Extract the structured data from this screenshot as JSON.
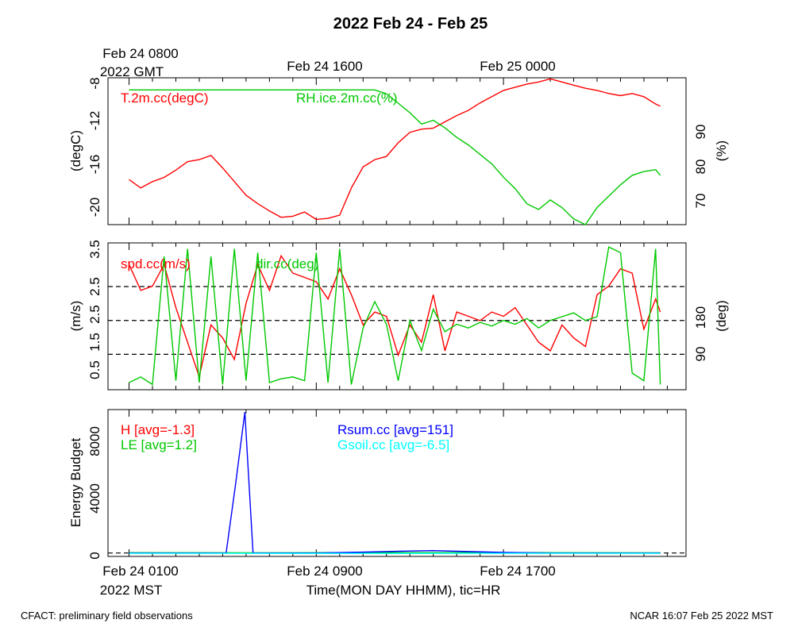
{
  "title": "2022 Feb 24 - Feb 25",
  "top_axis": {
    "ticks": [
      "Feb 24 0800",
      "Feb 24 1600",
      "Feb 25 0000"
    ],
    "zone_label": "2022 GMT"
  },
  "bottom_axis": {
    "ticks": [
      "Feb 24 0100",
      "Feb 24 0900",
      "Feb 24 1700"
    ],
    "zone_label": "2022 MST",
    "xlabel": "Time(MON DAY HHMM), tic=HR"
  },
  "footer": {
    "left": "CFACT: preliminary field observations",
    "right": "NCAR 16:07 Feb 25 2022 MST"
  },
  "colors": {
    "red": "#ff0000",
    "green": "#00c800",
    "blue": "#0000ff",
    "cyan": "#00ffff"
  },
  "chart_data": [
    {
      "type": "line",
      "panel": "temperature-humidity",
      "x_unit": "hours since Feb 24 0100 MST",
      "xlim": [
        -0.9,
        23.8
      ],
      "y_left": {
        "label": "(degC)",
        "ticks": [
          "-8",
          "-12",
          "-16",
          "-20"
        ],
        "ylim": [
          -21.8,
          -7.8
        ]
      },
      "y_right": {
        "label": "(%)",
        "ticks": [
          "70",
          "80",
          "90"
        ],
        "ylim": [
          64.5,
          103.2
        ]
      },
      "series": [
        {
          "name": "T.2m.cc(degC)",
          "color": "#ff0000",
          "axis": "left",
          "x": [
            0,
            0.5,
            1,
            1.5,
            2,
            2.5,
            3,
            3.5,
            4,
            4.5,
            5,
            5.5,
            6,
            6.5,
            7,
            7.5,
            8,
            8.5,
            9,
            9.5,
            10,
            10.5,
            11,
            11.5,
            12,
            12.5,
            13,
            13.5,
            14,
            14.5,
            15,
            15.5,
            16,
            16.5,
            17,
            17.5,
            18,
            18.5,
            19,
            19.5,
            20,
            20.5,
            21,
            21.5,
            22,
            22.5,
            22.7
          ],
          "y": [
            -17.5,
            -18.3,
            -17.7,
            -17.3,
            -16.6,
            -15.8,
            -15.6,
            -15.2,
            -16.4,
            -17.7,
            -19.0,
            -19.8,
            -20.5,
            -21.1,
            -21.0,
            -20.6,
            -21.3,
            -21.2,
            -20.9,
            -18.3,
            -16.3,
            -15.6,
            -15.3,
            -14.0,
            -13.0,
            -12.7,
            -12.6,
            -12.0,
            -11.4,
            -10.9,
            -10.2,
            -9.6,
            -9.0,
            -8.7,
            -8.4,
            -8.2,
            -7.9,
            -8.2,
            -8.5,
            -8.8,
            -9.0,
            -9.3,
            -9.5,
            -9.3,
            -9.6,
            -10.3,
            -10.5
          ]
        },
        {
          "name": "RH.ice.2m.cc(%)",
          "color": "#00c800",
          "axis": "right",
          "x": [
            0,
            0.5,
            1,
            1.5,
            2,
            2.5,
            3,
            3.5,
            4,
            4.5,
            5,
            5.5,
            6,
            6.5,
            7,
            7.5,
            8,
            8.5,
            9,
            9.5,
            10,
            10.5,
            11,
            11.5,
            12,
            12.5,
            13,
            13.5,
            14,
            14.5,
            15,
            15.5,
            16,
            16.5,
            17,
            17.5,
            18,
            18.5,
            19,
            19.5,
            20,
            20.5,
            21,
            21.5,
            22,
            22.5,
            22.7
          ],
          "y": [
            100,
            100,
            100,
            100,
            100,
            100,
            100,
            100,
            100,
            100,
            100,
            100,
            100,
            100,
            100,
            100,
            100,
            100,
            100,
            100,
            100,
            100,
            99,
            96.5,
            94,
            91,
            92,
            90,
            87.5,
            85.5,
            83,
            80.5,
            77,
            74,
            70,
            68.5,
            71,
            69,
            66,
            64.5,
            69,
            72,
            75,
            77.5,
            78.5,
            79,
            77.5
          ]
        }
      ]
    },
    {
      "type": "line",
      "panel": "wind",
      "x_unit": "hours since Feb 24 0100 MST",
      "xlim": [
        -0.9,
        23.8
      ],
      "y_left": {
        "label": "(m/s)",
        "ticks": [
          "0.5",
          "1.5",
          "2.5",
          "3.5"
        ],
        "ylim": [
          0.1,
          3.5
        ]
      },
      "y_right": {
        "label": "(deg)",
        "ticks": [
          "90",
          "180"
        ],
        "ylim": [
          -4,
          386
        ]
      },
      "reference_lines_deg": [
        90,
        180,
        270
      ],
      "series": [
        {
          "name": "spd.cc(m/s)",
          "color": "#ff0000",
          "axis": "left",
          "x": [
            0,
            0.5,
            1,
            1.5,
            2,
            2.5,
            3,
            3.5,
            4,
            4.5,
            5,
            5.5,
            6,
            6.5,
            7,
            7.5,
            8,
            8.5,
            9,
            9.5,
            10,
            10.5,
            11,
            11.5,
            12,
            12.5,
            13,
            13.5,
            14,
            14.5,
            15,
            15.5,
            16,
            16.5,
            17,
            17.5,
            18,
            18.5,
            19,
            19.5,
            20,
            20.5,
            21,
            21.5,
            22,
            22.5,
            22.7
          ],
          "y": [
            3.0,
            2.4,
            2.5,
            3.0,
            2.0,
            1.2,
            0.4,
            1.6,
            1.3,
            0.8,
            2.1,
            3.0,
            2.4,
            3.2,
            2.8,
            2.7,
            2.6,
            2.2,
            2.9,
            2.3,
            1.6,
            1.9,
            1.8,
            0.9,
            1.6,
            1.2,
            2.3,
            1.0,
            1.9,
            1.8,
            1.7,
            1.9,
            1.8,
            2.0,
            1.6,
            1.2,
            1.0,
            1.6,
            1.3,
            1.1,
            2.3,
            2.5,
            2.9,
            2.8,
            1.5,
            2.2,
            1.9
          ]
        },
        {
          "name": "dir.cc(deg)",
          "color": "#00c800",
          "axis": "right",
          "x": [
            0,
            0.5,
            1,
            1.5,
            2,
            2.5,
            3,
            3.5,
            4,
            4.5,
            5,
            5.5,
            6,
            6.5,
            7,
            7.5,
            8,
            8.5,
            9,
            9.5,
            10,
            10.5,
            11,
            11.5,
            12,
            12.5,
            13,
            13.5,
            14,
            14.5,
            15,
            15.5,
            16,
            16.5,
            17,
            17.5,
            18,
            18.5,
            19,
            19.5,
            20,
            20.5,
            21,
            21.5,
            22,
            22.5,
            22.7
          ],
          "y": [
            15,
            30,
            10,
            350,
            20,
            370,
            15,
            350,
            10,
            370,
            20,
            360,
            15,
            25,
            30,
            20,
            360,
            15,
            370,
            10,
            160,
            230,
            170,
            20,
            180,
            100,
            210,
            150,
            170,
            160,
            175,
            165,
            180,
            170,
            185,
            160,
            180,
            190,
            200,
            180,
            190,
            375,
            360,
            40,
            20,
            370,
            10
          ]
        }
      ]
    },
    {
      "type": "line",
      "panel": "energy-budget",
      "x_unit": "hours since Feb 24 0100 MST",
      "xlim": [
        -0.9,
        23.8
      ],
      "y_left": {
        "label": "Energy Budget",
        "ticks": [
          "0",
          "4000",
          "8000"
        ],
        "ylim": [
          -240,
          10080
        ]
      },
      "series": [
        {
          "name": "H [avg=-1.3]",
          "color": "#ff0000",
          "x": [
            0,
            5,
            10,
            15,
            20,
            22.7
          ],
          "y": [
            10,
            5,
            0,
            -5,
            0,
            5
          ]
        },
        {
          "name": "LE [avg=1.2]",
          "color": "#00c800",
          "x": [
            0,
            5,
            10,
            15,
            20,
            22.7
          ],
          "y": [
            20,
            15,
            25,
            30,
            20,
            15
          ]
        },
        {
          "name": "Rsum.cc [avg=151]",
          "color": "#0000ff",
          "x": [
            0,
            2,
            4,
            4.15,
            4.55,
            4.95,
            5.3,
            8,
            10,
            12,
            13,
            14,
            16,
            18,
            20,
            22,
            22.7
          ],
          "y": [
            0,
            0,
            0,
            0,
            4800,
            9900,
            0,
            0,
            60,
            140,
            170,
            120,
            40,
            0,
            0,
            0,
            0
          ]
        },
        {
          "name": "Gsoil.cc [avg=-6.5]",
          "color": "#00ffff",
          "x": [
            0,
            5,
            10,
            15,
            20,
            22.7
          ],
          "y": [
            -20,
            -25,
            -30,
            -25,
            -20,
            -20
          ]
        }
      ]
    }
  ]
}
